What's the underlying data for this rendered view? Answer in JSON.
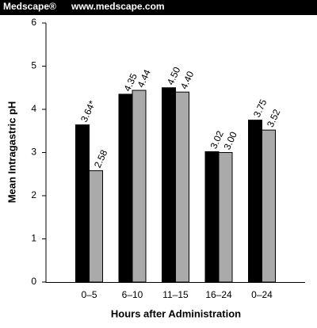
{
  "header": {
    "brand": "Medscape®",
    "url": "www.medscape.com"
  },
  "chart_data": {
    "type": "bar",
    "ylabel": "Mean Intragastric pH",
    "xlabel": "Hours after Administration",
    "categories": [
      "0–5",
      "6–10",
      "11–15",
      "16–24",
      "0–24"
    ],
    "series": [
      {
        "color": "#000000",
        "values": [
          3.64,
          4.35,
          4.5,
          3.02,
          3.75
        ],
        "value_labels": [
          "3.64*",
          "4.35",
          "4.50",
          "3.02",
          "3.75"
        ]
      },
      {
        "color": "#aaaaaa",
        "values": [
          2.58,
          4.44,
          4.4,
          3.0,
          3.52
        ],
        "value_labels": [
          "2.58",
          "4.44",
          "4.40",
          "3.00",
          "3.52"
        ]
      }
    ],
    "ylim": [
      0,
      6
    ],
    "yticks": [
      0,
      1,
      2,
      3,
      4,
      5,
      6
    ],
    "grid": false
  }
}
